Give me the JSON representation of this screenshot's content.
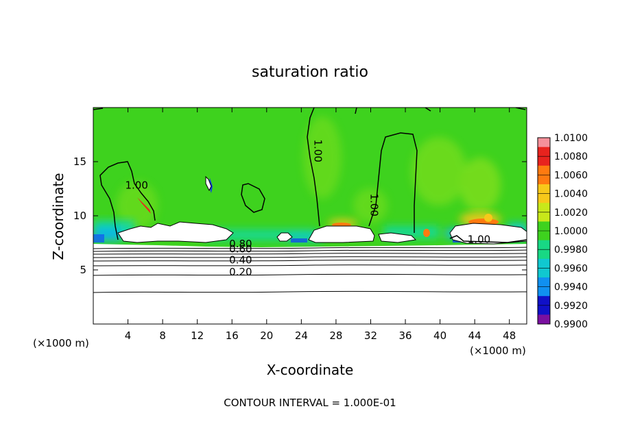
{
  "chart_data": {
    "type": "heatmap",
    "title": "saturation ratio",
    "xlabel": "X-coordinate",
    "ylabel": "Z-coordinate",
    "x_unit_left": "(×1000 m)",
    "x_unit_right": "(×1000 m)",
    "footer": "CONTOUR INTERVAL = 1.000E-01",
    "xlim": [
      0,
      50
    ],
    "ylim": [
      0,
      20
    ],
    "x_ticks": [
      4,
      8,
      12,
      16,
      20,
      24,
      28,
      32,
      36,
      40,
      44,
      48
    ],
    "y_ticks": [
      5,
      10,
      15
    ],
    "contour_labels": [
      {
        "text": "1.00",
        "x": 5,
        "z": 12.5
      },
      {
        "text": "1.00",
        "x": 25.5,
        "z": 16
      },
      {
        "text": "1.00",
        "x": 32,
        "z": 11
      },
      {
        "text": "1.00",
        "x": 44.5,
        "z": 7.5
      },
      {
        "text": "0.80",
        "x": 17,
        "z": 7.1
      },
      {
        "text": "0.60",
        "x": 17,
        "z": 6.6
      },
      {
        "text": "0.40",
        "x": 17,
        "z": 5.6
      },
      {
        "text": "0.20",
        "x": 17,
        "z": 4.5
      }
    ],
    "colorbar": {
      "labels": [
        "1.0100",
        "1.0080",
        "1.0060",
        "1.0040",
        "1.0020",
        "1.0000",
        "0.9980",
        "0.9960",
        "0.9940",
        "0.9920",
        "0.9900"
      ],
      "colors": [
        "#f5909a",
        "#e8231e",
        "#ff7a10",
        "#f7c81a",
        "#c8e81a",
        "#3ed21e",
        "#18d884",
        "#10c8d0",
        "#1090f0",
        "#1010c8",
        "#7a10a0"
      ]
    },
    "background_color": "#3ed21e"
  }
}
